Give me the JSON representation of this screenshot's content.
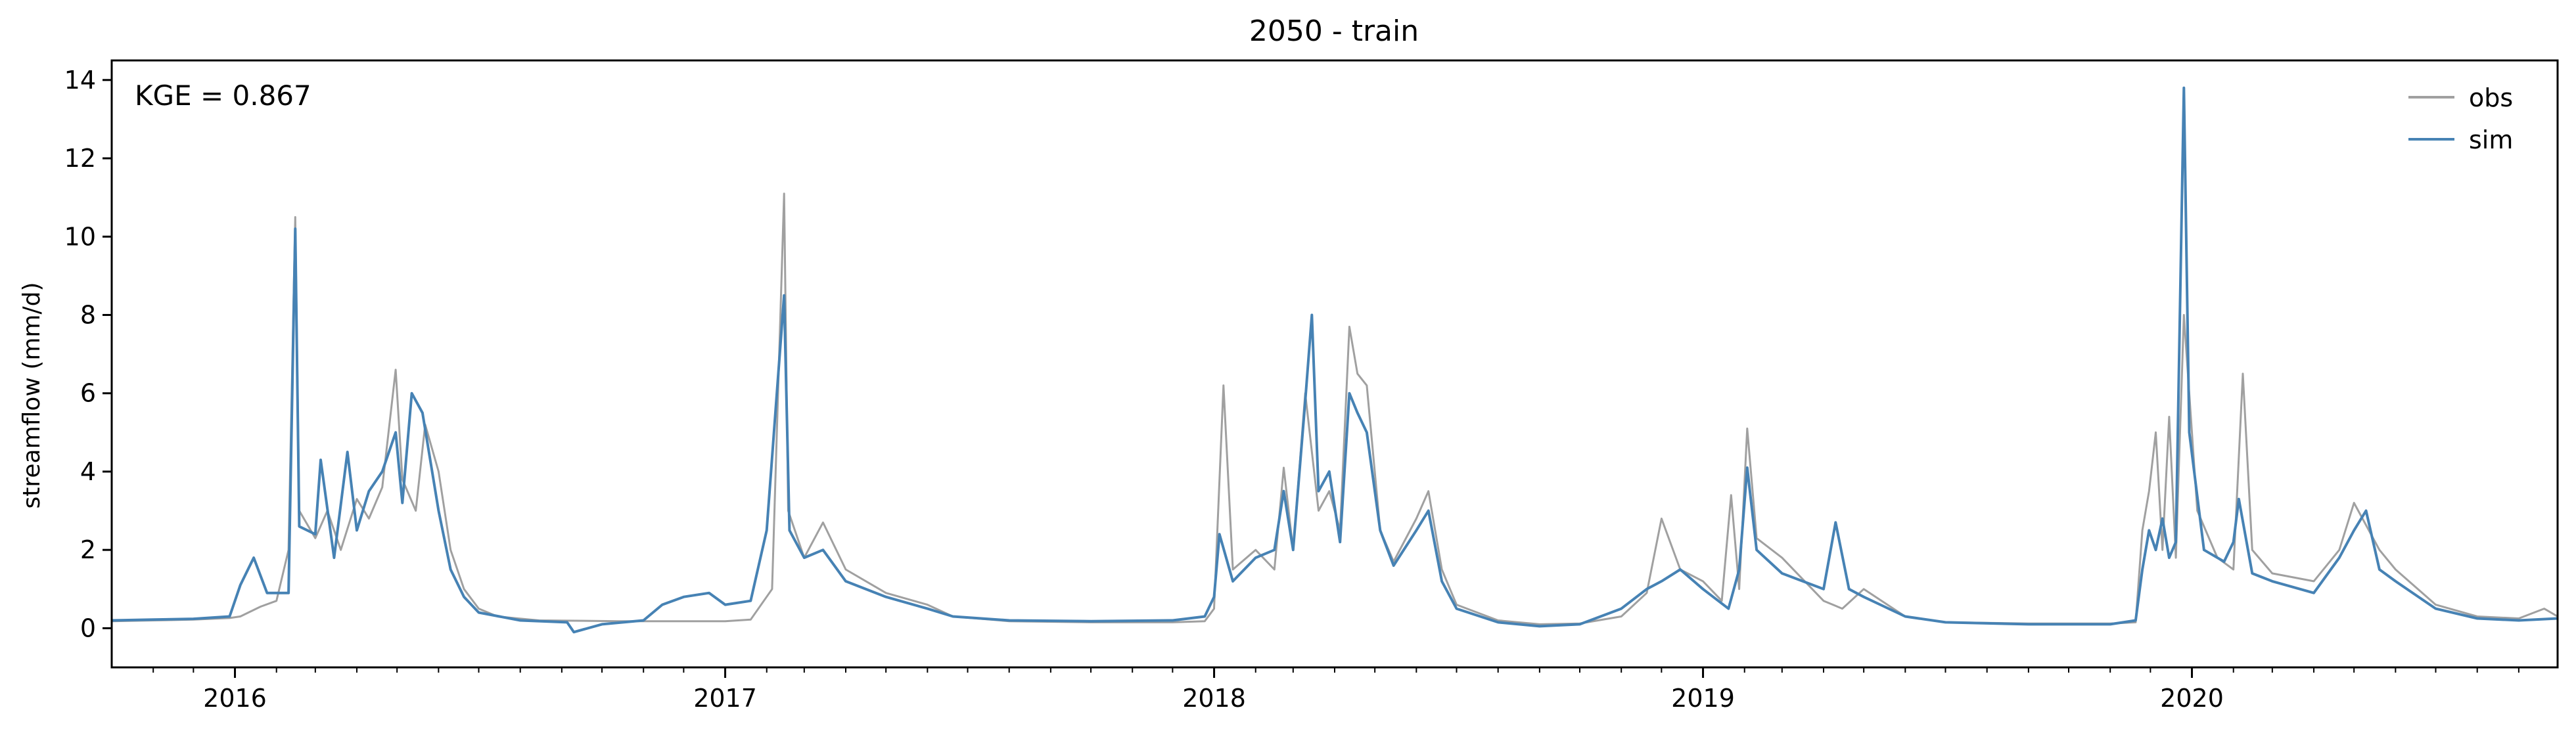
{
  "chart_data": {
    "type": "line",
    "title": "2050 - train",
    "xlabel": "",
    "ylabel": "streamflow (mm/d)",
    "annotation": "KGE = 0.867",
    "xlim": [
      "2015-10-01",
      "2020-09-30"
    ],
    "ylim": [
      -1,
      14.5
    ],
    "x_tick_labels": [
      "2016",
      "2017",
      "2018",
      "2019",
      "2020"
    ],
    "x_tick_dates": [
      "2016-01-01",
      "2017-01-01",
      "2018-01-01",
      "2019-01-01",
      "2020-01-01"
    ],
    "y_tick_labels": [
      "0",
      "2",
      "4",
      "6",
      "8",
      "10",
      "12",
      "14"
    ],
    "y_ticks": [
      0,
      2,
      4,
      6,
      8,
      10,
      12,
      14
    ],
    "grid": false,
    "legend_position": "top-right",
    "series": [
      {
        "name": "obs",
        "color": "#a0a0a0",
        "points": [
          [
            "2015-10-01",
            0.18
          ],
          [
            "2015-11-01",
            0.2
          ],
          [
            "2015-12-01",
            0.22
          ],
          [
            "2015-12-28",
            0.26
          ],
          [
            "2016-01-05",
            0.3
          ],
          [
            "2016-01-20",
            0.55
          ],
          [
            "2016-02-01",
            0.7
          ],
          [
            "2016-02-10",
            2.0
          ],
          [
            "2016-02-15",
            10.5
          ],
          [
            "2016-02-18",
            3.0
          ],
          [
            "2016-03-01",
            2.3
          ],
          [
            "2016-03-10",
            3.0
          ],
          [
            "2016-03-20",
            2.0
          ],
          [
            "2016-04-01",
            3.3
          ],
          [
            "2016-04-10",
            2.8
          ],
          [
            "2016-04-20",
            3.6
          ],
          [
            "2016-04-30",
            6.6
          ],
          [
            "2016-05-05",
            3.8
          ],
          [
            "2016-05-15",
            3.0
          ],
          [
            "2016-05-22",
            5.2
          ],
          [
            "2016-06-01",
            4.0
          ],
          [
            "2016-06-10",
            2.0
          ],
          [
            "2016-06-20",
            1.0
          ],
          [
            "2016-07-01",
            0.5
          ],
          [
            "2016-07-15",
            0.3
          ],
          [
            "2016-08-15",
            0.2
          ],
          [
            "2016-10-15",
            0.18
          ],
          [
            "2016-12-01",
            0.18
          ],
          [
            "2017-01-01",
            0.18
          ],
          [
            "2017-01-20",
            0.22
          ],
          [
            "2017-02-05",
            1.0
          ],
          [
            "2017-02-14",
            11.1
          ],
          [
            "2017-02-17",
            3.0
          ],
          [
            "2017-03-01",
            1.8
          ],
          [
            "2017-03-15",
            2.7
          ],
          [
            "2017-04-01",
            1.5
          ],
          [
            "2017-05-01",
            0.9
          ],
          [
            "2017-06-01",
            0.6
          ],
          [
            "2017-06-20",
            0.3
          ],
          [
            "2017-08-01",
            0.18
          ],
          [
            "2017-10-01",
            0.15
          ],
          [
            "2017-12-01",
            0.15
          ],
          [
            "2017-12-25",
            0.18
          ],
          [
            "2018-01-01",
            0.5
          ],
          [
            "2018-01-08",
            6.2
          ],
          [
            "2018-01-15",
            1.5
          ],
          [
            "2018-02-01",
            2.0
          ],
          [
            "2018-02-15",
            1.5
          ],
          [
            "2018-02-22",
            4.1
          ],
          [
            "2018-03-01",
            2.0
          ],
          [
            "2018-03-10",
            6.0
          ],
          [
            "2018-03-20",
            3.0
          ],
          [
            "2018-03-28",
            3.5
          ],
          [
            "2018-04-05",
            2.5
          ],
          [
            "2018-04-12",
            7.7
          ],
          [
            "2018-04-18",
            6.5
          ],
          [
            "2018-04-25",
            6.2
          ],
          [
            "2018-05-05",
            2.5
          ],
          [
            "2018-05-15",
            1.7
          ],
          [
            "2018-06-01",
            2.8
          ],
          [
            "2018-06-10",
            3.5
          ],
          [
            "2018-06-20",
            1.5
          ],
          [
            "2018-07-01",
            0.6
          ],
          [
            "2018-08-01",
            0.2
          ],
          [
            "2018-09-01",
            0.1
          ],
          [
            "2018-10-01",
            0.12
          ],
          [
            "2018-11-01",
            0.3
          ],
          [
            "2018-11-20",
            0.9
          ],
          [
            "2018-12-01",
            2.8
          ],
          [
            "2018-12-15",
            1.5
          ],
          [
            "2019-01-01",
            1.2
          ],
          [
            "2019-01-15",
            0.7
          ],
          [
            "2019-01-22",
            3.4
          ],
          [
            "2019-01-28",
            1.0
          ],
          [
            "2019-02-03",
            5.1
          ],
          [
            "2019-02-10",
            2.3
          ],
          [
            "2019-03-01",
            1.8
          ],
          [
            "2019-04-01",
            0.7
          ],
          [
            "2019-04-15",
            0.5
          ],
          [
            "2019-05-01",
            1.0
          ],
          [
            "2019-06-01",
            0.3
          ],
          [
            "2019-07-01",
            0.15
          ],
          [
            "2019-09-01",
            0.12
          ],
          [
            "2019-11-01",
            0.12
          ],
          [
            "2019-11-20",
            0.15
          ],
          [
            "2019-11-25",
            2.5
          ],
          [
            "2019-11-30",
            3.5
          ],
          [
            "2019-12-05",
            5.0
          ],
          [
            "2019-12-10",
            2.0
          ],
          [
            "2019-12-15",
            5.4
          ],
          [
            "2019-12-20",
            1.8
          ],
          [
            "2019-12-26",
            8.0
          ],
          [
            "2020-01-05",
            3.0
          ],
          [
            "2020-01-20",
            1.8
          ],
          [
            "2020-02-01",
            1.5
          ],
          [
            "2020-02-08",
            6.5
          ],
          [
            "2020-02-15",
            2.0
          ],
          [
            "2020-03-01",
            1.4
          ],
          [
            "2020-04-01",
            1.2
          ],
          [
            "2020-04-20",
            2.0
          ],
          [
            "2020-05-01",
            3.2
          ],
          [
            "2020-05-20",
            2.0
          ],
          [
            "2020-06-01",
            1.5
          ],
          [
            "2020-07-01",
            0.6
          ],
          [
            "2020-08-01",
            0.3
          ],
          [
            "2020-09-01",
            0.25
          ],
          [
            "2020-09-20",
            0.5
          ],
          [
            "2020-09-30",
            0.3
          ]
        ]
      },
      {
        "name": "sim",
        "color": "#4682b4",
        "points": [
          [
            "2015-10-01",
            0.2
          ],
          [
            "2015-11-01",
            0.22
          ],
          [
            "2015-12-01",
            0.24
          ],
          [
            "2015-12-28",
            0.3
          ],
          [
            "2016-01-05",
            1.1
          ],
          [
            "2016-01-15",
            1.8
          ],
          [
            "2016-01-25",
            0.9
          ],
          [
            "2016-02-10",
            0.9
          ],
          [
            "2016-02-15",
            10.2
          ],
          [
            "2016-02-18",
            2.6
          ],
          [
            "2016-03-01",
            2.4
          ],
          [
            "2016-03-05",
            4.3
          ],
          [
            "2016-03-15",
            1.8
          ],
          [
            "2016-03-25",
            4.5
          ],
          [
            "2016-04-01",
            2.5
          ],
          [
            "2016-04-10",
            3.5
          ],
          [
            "2016-04-20",
            4.0
          ],
          [
            "2016-04-30",
            5.0
          ],
          [
            "2016-05-05",
            3.2
          ],
          [
            "2016-05-12",
            6.0
          ],
          [
            "2016-05-20",
            5.5
          ],
          [
            "2016-06-01",
            3.0
          ],
          [
            "2016-06-10",
            1.5
          ],
          [
            "2016-06-20",
            0.8
          ],
          [
            "2016-07-01",
            0.4
          ],
          [
            "2016-08-01",
            0.2
          ],
          [
            "2016-09-05",
            0.15
          ],
          [
            "2016-09-10",
            -0.1
          ],
          [
            "2016-10-01",
            0.1
          ],
          [
            "2016-11-01",
            0.2
          ],
          [
            "2016-11-15",
            0.6
          ],
          [
            "2016-12-01",
            0.8
          ],
          [
            "2016-12-20",
            0.9
          ],
          [
            "2017-01-01",
            0.6
          ],
          [
            "2017-01-20",
            0.7
          ],
          [
            "2017-02-01",
            2.5
          ],
          [
            "2017-02-14",
            8.5
          ],
          [
            "2017-02-18",
            2.5
          ],
          [
            "2017-03-01",
            1.8
          ],
          [
            "2017-03-15",
            2.0
          ],
          [
            "2017-04-01",
            1.2
          ],
          [
            "2017-05-01",
            0.8
          ],
          [
            "2017-06-01",
            0.5
          ],
          [
            "2017-06-20",
            0.3
          ],
          [
            "2017-08-01",
            0.2
          ],
          [
            "2017-10-01",
            0.18
          ],
          [
            "2017-12-01",
            0.2
          ],
          [
            "2017-12-25",
            0.3
          ],
          [
            "2018-01-01",
            0.8
          ],
          [
            "2018-01-05",
            2.4
          ],
          [
            "2018-01-15",
            1.2
          ],
          [
            "2018-02-01",
            1.8
          ],
          [
            "2018-02-15",
            2.0
          ],
          [
            "2018-02-22",
            3.5
          ],
          [
            "2018-03-01",
            2.0
          ],
          [
            "2018-03-10",
            5.8
          ],
          [
            "2018-03-15",
            8.0
          ],
          [
            "2018-03-20",
            3.5
          ],
          [
            "2018-03-28",
            4.0
          ],
          [
            "2018-04-05",
            2.2
          ],
          [
            "2018-04-12",
            6.0
          ],
          [
            "2018-04-18",
            5.5
          ],
          [
            "2018-04-25",
            5.0
          ],
          [
            "2018-05-05",
            2.5
          ],
          [
            "2018-05-15",
            1.6
          ],
          [
            "2018-06-01",
            2.5
          ],
          [
            "2018-06-10",
            3.0
          ],
          [
            "2018-06-20",
            1.2
          ],
          [
            "2018-07-01",
            0.5
          ],
          [
            "2018-08-01",
            0.15
          ],
          [
            "2018-09-01",
            0.05
          ],
          [
            "2018-10-01",
            0.1
          ],
          [
            "2018-11-01",
            0.5
          ],
          [
            "2018-11-20",
            1.0
          ],
          [
            "2018-12-01",
            1.2
          ],
          [
            "2018-12-15",
            1.5
          ],
          [
            "2019-01-01",
            1.0
          ],
          [
            "2019-01-20",
            0.5
          ],
          [
            "2019-01-28",
            1.5
          ],
          [
            "2019-02-03",
            4.1
          ],
          [
            "2019-02-10",
            2.0
          ],
          [
            "2019-03-01",
            1.4
          ],
          [
            "2019-04-01",
            1.0
          ],
          [
            "2019-04-10",
            2.7
          ],
          [
            "2019-04-20",
            1.0
          ],
          [
            "2019-05-01",
            0.8
          ],
          [
            "2019-06-01",
            0.3
          ],
          [
            "2019-07-01",
            0.15
          ],
          [
            "2019-09-01",
            0.1
          ],
          [
            "2019-11-01",
            0.1
          ],
          [
            "2019-11-20",
            0.2
          ],
          [
            "2019-11-25",
            1.5
          ],
          [
            "2019-11-30",
            2.5
          ],
          [
            "2019-12-05",
            2.0
          ],
          [
            "2019-12-10",
            2.8
          ],
          [
            "2019-12-15",
            1.8
          ],
          [
            "2019-12-20",
            2.2
          ],
          [
            "2019-12-26",
            13.8
          ],
          [
            "2019-12-30",
            5.0
          ],
          [
            "2020-01-10",
            2.0
          ],
          [
            "2020-01-25",
            1.7
          ],
          [
            "2020-02-01",
            2.2
          ],
          [
            "2020-02-05",
            3.3
          ],
          [
            "2020-02-15",
            1.4
          ],
          [
            "2020-03-01",
            1.2
          ],
          [
            "2020-04-01",
            0.9
          ],
          [
            "2020-04-20",
            1.8
          ],
          [
            "2020-05-01",
            2.5
          ],
          [
            "2020-05-10",
            3.0
          ],
          [
            "2020-05-20",
            1.5
          ],
          [
            "2020-06-01",
            1.2
          ],
          [
            "2020-07-01",
            0.5
          ],
          [
            "2020-08-01",
            0.25
          ],
          [
            "2020-09-01",
            0.2
          ],
          [
            "2020-09-30",
            0.25
          ]
        ]
      }
    ]
  }
}
